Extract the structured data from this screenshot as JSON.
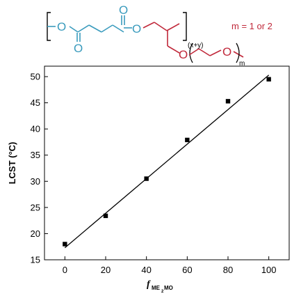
{
  "structure": {
    "subscript_xy": "(x+y)",
    "subscript_m": "m",
    "oxygen_label": "O",
    "m_note": "m = 1 or 2",
    "colors": {
      "ester_block": "#3a9bbd",
      "side_chain": "#c0283a",
      "bracket": "#000000"
    }
  },
  "chart_data": {
    "type": "scatter",
    "xlabel_main": "f",
    "xlabel_sub1": "ME",
    "xlabel_sub2": "2",
    "xlabel_sub3": "MO",
    "ylabel": "LCST (°C)",
    "xlim": [
      -10,
      110
    ],
    "ylim": [
      15,
      52
    ],
    "x_ticks": [
      0,
      20,
      40,
      60,
      80,
      100
    ],
    "y_ticks": [
      15,
      20,
      25,
      30,
      35,
      40,
      45,
      50
    ],
    "series": [
      {
        "x": [
          0,
          20,
          40,
          60,
          80,
          100
        ],
        "y": [
          18.0,
          23.4,
          30.5,
          37.9,
          45.3,
          49.5
        ]
      }
    ],
    "fit_line": {
      "x": [
        0,
        100
      ],
      "y": [
        17.3,
        50.3
      ]
    },
    "grid": false,
    "marker_color": "#000000"
  }
}
